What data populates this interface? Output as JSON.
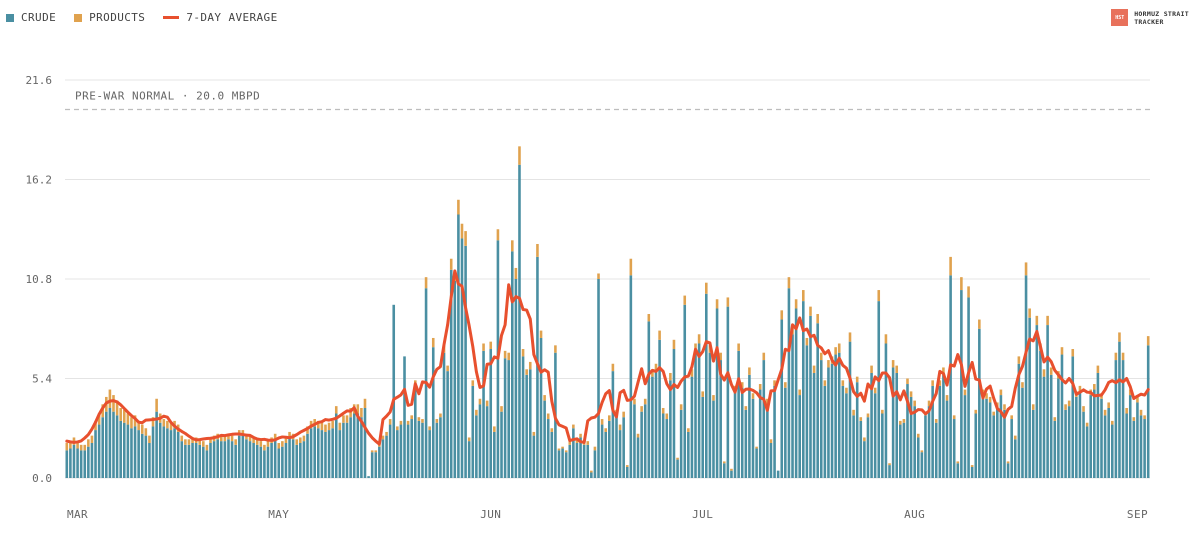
{
  "legend": {
    "crude_label": "CRUDE",
    "products_label": "PRODUCTS",
    "avg_label": "7-DAY AVERAGE"
  },
  "brand": {
    "logo_text": "HST",
    "line1": "HORMUZ STRAIT",
    "line2": "TRACKER"
  },
  "colors": {
    "crude": "#4a8fa2",
    "products": "#e0a24e",
    "average": "#e8502e",
    "grid": "#e4e4e4",
    "reference": "#bdbdbd",
    "axis_text": "#666666"
  },
  "chart_data": {
    "type": "bar",
    "stacked": true,
    "units": "MBPD",
    "ylim": [
      0,
      21.6
    ],
    "y_ticks": [
      "0.0",
      "5.4",
      "10.8",
      "16.2",
      "21.6"
    ],
    "x_tick_labels": [
      "MAR",
      "MAY",
      "JUN",
      "JUL",
      "AUG",
      "SEP"
    ],
    "x_tick_days": [
      0,
      59,
      118,
      177,
      236,
      295
    ],
    "reference_line": {
      "value": 20.0,
      "label": "PRE-WAR NORMAL · 20.0 MBPD"
    },
    "crude": [
      1.5,
      1.6,
      1.8,
      1.6,
      1.5,
      1.5,
      1.7,
      1.9,
      2.6,
      2.9,
      3.3,
      3.6,
      3.8,
      3.6,
      3.4,
      3.1,
      3.0,
      2.9,
      2.7,
      2.8,
      2.6,
      2.4,
      2.3,
      1.9,
      2.8,
      3.6,
      3.0,
      2.8,
      2.7,
      2.6,
      2.7,
      2.5,
      2.0,
      1.8,
      1.8,
      1.9,
      1.9,
      1.8,
      1.7,
      1.5,
      1.9,
      2.0,
      2.1,
      2.0,
      2.0,
      2.1,
      2.0,
      1.8,
      2.3,
      2.3,
      2.1,
      2.0,
      1.9,
      1.8,
      1.7,
      1.5,
      1.7,
      1.9,
      2.1,
      1.6,
      1.7,
      1.9,
      2.2,
      2.1,
      1.8,
      1.9,
      2.0,
      2.4,
      2.7,
      2.8,
      2.7,
      2.6,
      2.5,
      2.6,
      2.7,
      3.5,
      2.6,
      3.0,
      3.0,
      3.3,
      3.5,
      3.5,
      3.3,
      3.8,
      0.1,
      1.4,
      1.4,
      1.7,
      2.1,
      2.3,
      2.9,
      9.4,
      2.6,
      2.9,
      6.6,
      2.9,
      3.2,
      5.0,
      3.1,
      3.0,
      10.3,
      2.6,
      7.1,
      3.0,
      3.3,
      6.8,
      5.8,
      11.3,
      10.7,
      14.3,
      13.0,
      12.6,
      2.0,
      5.0,
      3.4,
      4.0,
      6.9,
      3.9,
      7.0,
      2.5,
      12.9,
      3.6,
      6.5,
      6.4,
      12.3,
      10.8,
      17.0,
      6.6,
      5.6,
      5.9,
      2.3,
      12.0,
      7.6,
      4.2,
      3.2,
      2.5,
      6.8,
      1.5,
      1.6,
      1.4,
      1.8,
      2.7,
      1.9,
      2.2,
      1.8,
      1.8,
      0.3,
      1.5,
      10.8,
      2.9,
      2.5,
      3.1,
      5.8,
      3.4,
      2.6,
      3.3,
      0.6,
      11.0,
      4.0,
      2.2,
      3.6,
      4.0,
      8.5,
      5.5,
      5.8,
      7.5,
      3.5,
      3.2,
      5.3,
      7.0,
      1.0,
      3.7,
      9.4,
      2.5,
      5.5,
      6.8,
      7.3,
      4.4,
      10.0,
      6.8,
      4.2,
      9.2,
      6.4,
      0.8,
      9.3,
      0.4,
      4.7,
      6.9,
      4.9,
      3.7,
      5.6,
      4.3,
      1.6,
      4.8,
      6.4,
      4.0,
      1.9,
      5.0,
      0.4,
      8.6,
      4.9,
      10.3,
      7.8,
      9.2,
      4.5,
      9.6,
      7.2,
      8.8,
      5.7,
      8.4,
      6.4,
      5.0,
      6.0,
      6.2,
      6.7,
      6.8,
      5.0,
      4.6,
      7.4,
      3.4,
      5.2,
      3.1,
      2.0,
      3.3,
      5.7,
      4.6,
      9.6,
      3.5,
      7.3,
      0.7,
      6.0,
      5.7,
      2.9,
      3.0,
      5.1,
      4.4,
      3.9,
      2.2,
      1.4,
      3.4,
      3.9,
      5.0,
      3.0,
      5.0,
      5.6,
      4.2,
      11.0,
      3.2,
      0.8,
      10.2,
      4.5,
      9.8,
      0.6,
      3.5,
      8.1,
      4.5,
      4.3,
      4.1,
      3.4,
      3.8,
      4.5,
      3.7,
      0.8,
      3.2,
      2.1,
      6.2,
      4.9,
      11.0,
      8.7,
      3.7,
      8.3,
      6.9,
      5.5,
      8.3,
      5.6,
      3.1,
      5.4,
      6.7,
      3.7,
      3.9,
      6.6,
      4.4,
      4.7,
      3.6,
      2.8,
      4.5,
      4.8,
      5.7,
      4.3,
      3.4,
      3.8,
      2.9,
      6.4,
      7.4,
      6.4,
      3.5,
      4.5,
      3.1,
      4.1,
      3.4,
      3.2,
      7.2
    ],
    "products": [
      0.4,
      0.4,
      0.4,
      0.3,
      0.3,
      0.3,
      0.4,
      0.4,
      0.5,
      0.6,
      0.7,
      0.8,
      1.0,
      0.9,
      0.8,
      0.7,
      0.7,
      0.6,
      0.6,
      0.6,
      0.5,
      0.5,
      0.4,
      0.4,
      0.5,
      0.7,
      0.5,
      0.4,
      0.4,
      0.4,
      0.4,
      0.4,
      0.3,
      0.3,
      0.3,
      0.3,
      0.3,
      0.3,
      0.3,
      0.3,
      0.3,
      0.3,
      0.3,
      0.3,
      0.3,
      0.3,
      0.3,
      0.3,
      0.3,
      0.3,
      0.3,
      0.3,
      0.3,
      0.3,
      0.3,
      0.3,
      0.3,
      0.3,
      0.3,
      0.3,
      0.3,
      0.3,
      0.3,
      0.3,
      0.3,
      0.3,
      0.3,
      0.4,
      0.4,
      0.4,
      0.4,
      0.4,
      0.4,
      0.4,
      0.4,
      0.4,
      0.4,
      0.4,
      0.4,
      0.5,
      0.5,
      0.5,
      0.5,
      0.5,
      0.0,
      0.1,
      0.1,
      0.1,
      0.2,
      0.2,
      0.3,
      0.0,
      0.2,
      0.2,
      0.0,
      0.2,
      0.2,
      0.3,
      0.2,
      0.2,
      0.6,
      0.2,
      0.5,
      0.2,
      0.2,
      0.4,
      0.3,
      0.6,
      0.5,
      0.8,
      0.8,
      0.8,
      0.2,
      0.3,
      0.3,
      0.3,
      0.4,
      0.3,
      0.4,
      0.3,
      0.6,
      0.3,
      0.4,
      0.4,
      0.6,
      0.6,
      1.0,
      0.4,
      0.3,
      0.4,
      0.2,
      0.7,
      0.4,
      0.3,
      0.3,
      0.2,
      0.4,
      0.1,
      0.1,
      0.1,
      0.2,
      0.2,
      0.2,
      0.2,
      0.2,
      0.2,
      0.1,
      0.2,
      0.3,
      0.3,
      0.2,
      0.3,
      0.4,
      0.3,
      0.3,
      0.3,
      0.1,
      0.9,
      0.3,
      0.2,
      0.3,
      0.3,
      0.4,
      0.3,
      0.4,
      0.5,
      0.3,
      0.3,
      0.4,
      0.5,
      0.1,
      0.3,
      0.5,
      0.2,
      0.4,
      0.5,
      0.5,
      0.3,
      0.6,
      0.4,
      0.3,
      0.5,
      0.4,
      0.1,
      0.5,
      0.1,
      0.3,
      0.4,
      0.3,
      0.2,
      0.4,
      0.3,
      0.1,
      0.3,
      0.4,
      0.3,
      0.2,
      0.3,
      0.0,
      0.5,
      0.3,
      0.6,
      0.5,
      0.5,
      0.3,
      0.6,
      0.4,
      0.5,
      0.4,
      0.5,
      0.4,
      0.3,
      0.4,
      0.4,
      0.4,
      0.5,
      0.3,
      0.3,
      0.5,
      0.3,
      0.3,
      0.2,
      0.2,
      0.2,
      0.4,
      0.3,
      0.6,
      0.2,
      0.5,
      0.1,
      0.4,
      0.4,
      0.2,
      0.2,
      0.3,
      0.3,
      0.3,
      0.2,
      0.1,
      0.2,
      0.3,
      0.3,
      0.2,
      0.3,
      0.4,
      0.3,
      1.0,
      0.2,
      0.1,
      0.7,
      0.3,
      0.6,
      0.1,
      0.2,
      0.5,
      0.3,
      0.3,
      0.3,
      0.2,
      0.3,
      0.3,
      0.3,
      0.1,
      0.2,
      0.2,
      0.4,
      0.3,
      0.7,
      0.5,
      0.3,
      0.5,
      0.4,
      0.4,
      0.5,
      0.4,
      0.2,
      0.4,
      0.4,
      0.3,
      0.3,
      0.4,
      0.3,
      0.3,
      0.3,
      0.2,
      0.3,
      0.3,
      0.4,
      0.3,
      0.3,
      0.3,
      0.2,
      0.4,
      0.5,
      0.4,
      0.3,
      0.3,
      0.2,
      0.3,
      0.3,
      0.2,
      0.5
    ],
    "x_label": "",
    "y_label": ""
  }
}
